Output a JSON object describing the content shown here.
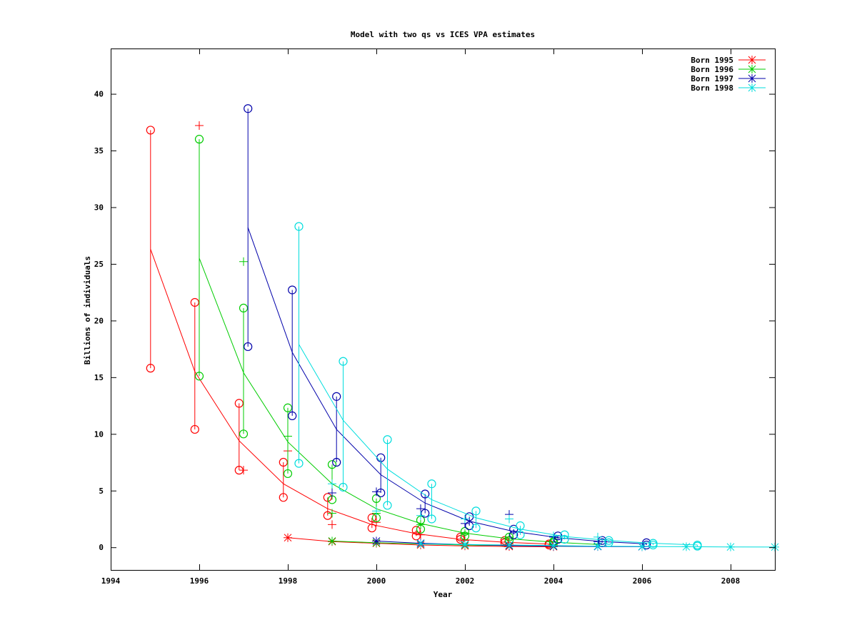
{
  "chart_data": {
    "type": "line",
    "title": "Model with two qs vs ICES VPA estimates",
    "xlabel": "Year",
    "ylabel": "Billions of individuals",
    "xlim": [
      1994,
      2009
    ],
    "ylim": [
      -2,
      44
    ],
    "x_ticks": [
      "1994",
      "1996",
      "1998",
      "2000",
      "2002",
      "2004",
      "2006",
      "2008"
    ],
    "x_tick_values": [
      1994,
      1996,
      1998,
      2000,
      2002,
      2004,
      2006,
      2008
    ],
    "y_ticks": [
      "0",
      "5",
      "10",
      "15",
      "20",
      "25",
      "30",
      "35",
      "40"
    ],
    "y_tick_values": [
      0,
      5,
      10,
      15,
      20,
      25,
      30,
      35,
      40
    ],
    "grid": false,
    "legend_position": "top-right",
    "series": [
      {
        "name": "Born 1995",
        "color": "#ff0000",
        "model_x": [
          1994.9,
          1995.9,
          1996.9,
          1997.9,
          1998.9,
          1999.9,
          2000.9,
          2001.9,
          2002.9,
          2003.9
        ],
        "model_y": [
          26.3,
          15.5,
          9.4,
          5.6,
          3.4,
          2.0,
          1.2,
          0.7,
          0.45,
          0.28
        ],
        "intervals": [
          {
            "x": 1994.9,
            "low": 15.8,
            "high": 36.8
          },
          {
            "x": 1995.9,
            "low": 10.4,
            "high": 21.6
          },
          {
            "x": 1996.9,
            "low": 6.8,
            "high": 12.7
          },
          {
            "x": 1997.9,
            "low": 4.4,
            "high": 7.5
          },
          {
            "x": 1998.9,
            "low": 2.8,
            "high": 4.4
          },
          {
            "x": 1999.9,
            "low": 1.7,
            "high": 2.6
          },
          {
            "x": 2000.9,
            "low": 1.0,
            "high": 1.5
          },
          {
            "x": 2001.9,
            "low": 0.7,
            "high": 0.9
          },
          {
            "x": 2002.9,
            "low": 0.4,
            "high": 0.6
          },
          {
            "x": 2003.9,
            "low": 0.2,
            "high": 0.3
          }
        ],
        "vpa_x": [
          1996,
          1997,
          1998,
          1999,
          2000,
          2001,
          2002,
          2003,
          2004
        ],
        "vpa_y": [
          37.2,
          6.8,
          8.5,
          2.0,
          2.2,
          1.1,
          0.6,
          0.3,
          0.2
        ],
        "star_x": [
          1998,
          1999,
          2000,
          2001,
          2002,
          2003,
          2004
        ],
        "star_y": [
          0.85,
          0.5,
          0.35,
          0.2,
          0.12,
          0.07,
          0.05
        ]
      },
      {
        "name": "Born 1996",
        "color": "#00cc00",
        "model_x": [
          1996.0,
          1997.0,
          1998.0,
          1999.0,
          2000.0,
          2001.0,
          2002.0,
          2003.0,
          2004.0,
          2005.0
        ],
        "model_y": [
          25.5,
          15.4,
          9.3,
          5.6,
          3.4,
          2.1,
          1.25,
          0.75,
          0.45,
          0.25
        ],
        "intervals": [
          {
            "x": 1996.0,
            "low": 15.1,
            "high": 36.0
          },
          {
            "x": 1997.0,
            "low": 10.0,
            "high": 21.1
          },
          {
            "x": 1998.0,
            "low": 6.5,
            "high": 12.3
          },
          {
            "x": 1999.0,
            "low": 4.2,
            "high": 7.3
          },
          {
            "x": 2000.0,
            "low": 2.6,
            "high": 4.3
          },
          {
            "x": 2001.0,
            "low": 1.6,
            "high": 2.4
          },
          {
            "x": 2002.0,
            "low": 1.0,
            "high": 1.4
          },
          {
            "x": 2003.0,
            "low": 0.6,
            "high": 0.9
          },
          {
            "x": 2004.0,
            "low": 0.4,
            "high": 0.5
          }
        ],
        "vpa_x": [
          1997,
          1998,
          1999,
          2000,
          2001,
          2002,
          2003,
          2004,
          2005
        ],
        "vpa_y": [
          25.2,
          9.8,
          3.0,
          3.0,
          2.0,
          1.2,
          0.9,
          0.5,
          0.3
        ],
        "star_x": [
          1999,
          2000,
          2001,
          2002,
          2003,
          2004,
          2005
        ],
        "star_y": [
          0.55,
          0.4,
          0.3,
          0.2,
          0.15,
          0.1,
          0.08
        ]
      },
      {
        "name": "Born 1997",
        "color": "#0000aa",
        "model_x": [
          1997.1,
          1998.1,
          1999.1,
          2000.1,
          2001.1,
          2002.1,
          2003.1,
          2004.1,
          2005.1,
          2006.1
        ],
        "model_y": [
          28.2,
          17.2,
          10.4,
          6.4,
          3.9,
          2.3,
          1.4,
          0.85,
          0.5,
          0.3
        ],
        "intervals": [
          {
            "x": 1997.1,
            "low": 17.7,
            "high": 38.7
          },
          {
            "x": 1998.1,
            "low": 11.6,
            "high": 22.7
          },
          {
            "x": 1999.1,
            "low": 7.5,
            "high": 13.3
          },
          {
            "x": 2000.1,
            "low": 4.8,
            "high": 7.9
          },
          {
            "x": 2001.1,
            "low": 3.0,
            "high": 4.7
          },
          {
            "x": 2002.1,
            "low": 1.9,
            "high": 2.7
          },
          {
            "x": 2003.1,
            "low": 1.1,
            "high": 1.6
          },
          {
            "x": 2004.1,
            "low": 0.7,
            "high": 1.0
          },
          {
            "x": 2005.1,
            "low": 0.4,
            "high": 0.6
          },
          {
            "x": 2006.1,
            "low": 0.2,
            "high": 0.4
          }
        ],
        "vpa_x": [
          1999,
          2000,
          2001,
          2002,
          2003,
          2004,
          2005
        ],
        "vpa_y": [
          4.8,
          4.9,
          3.4,
          2.1,
          2.9,
          0.9,
          0.5
        ],
        "star_x": [
          2000,
          2001,
          2002,
          2003,
          2004,
          2005,
          2006
        ],
        "star_y": [
          0.55,
          0.35,
          0.25,
          0.15,
          0.1,
          0.07,
          0.05
        ]
      },
      {
        "name": "Born 1998",
        "color": "#00dddd",
        "model_x": [
          1998.25,
          1999.25,
          2000.25,
          2001.25,
          2002.25,
          2003.25,
          2004.25,
          2005.25,
          2006.25,
          2007.25
        ],
        "model_y": [
          17.9,
          11.2,
          6.9,
          4.2,
          2.6,
          1.6,
          0.95,
          0.6,
          0.35,
          0.2
        ],
        "intervals": [
          {
            "x": 1998.25,
            "low": 7.4,
            "high": 28.3
          },
          {
            "x": 1999.25,
            "low": 5.3,
            "high": 16.4
          },
          {
            "x": 2000.25,
            "low": 3.7,
            "high": 9.5
          },
          {
            "x": 2001.25,
            "low": 2.5,
            "high": 5.6
          },
          {
            "x": 2002.25,
            "low": 1.7,
            "high": 3.2
          },
          {
            "x": 2003.25,
            "low": 1.1,
            "high": 1.9
          },
          {
            "x": 2004.25,
            "low": 0.7,
            "high": 1.1
          },
          {
            "x": 2005.25,
            "low": 0.4,
            "high": 0.6
          },
          {
            "x": 2006.25,
            "low": 0.2,
            "high": 0.35
          },
          {
            "x": 2007.25,
            "low": 0.1,
            "high": 0.2
          }
        ],
        "vpa_x": [
          1999,
          2000,
          2001,
          2002,
          2003,
          2004,
          2005
        ],
        "vpa_y": [
          5.6,
          3.2,
          2.8,
          2.5,
          2.5,
          1.0,
          0.9
        ],
        "star_x": [
          2001,
          2002,
          2003,
          2004,
          2005,
          2006,
          2007,
          2008,
          2009
        ],
        "star_y": [
          0.3,
          0.25,
          0.2,
          0.15,
          0.1,
          0.07,
          0.05,
          0.03,
          0.02
        ]
      }
    ]
  }
}
